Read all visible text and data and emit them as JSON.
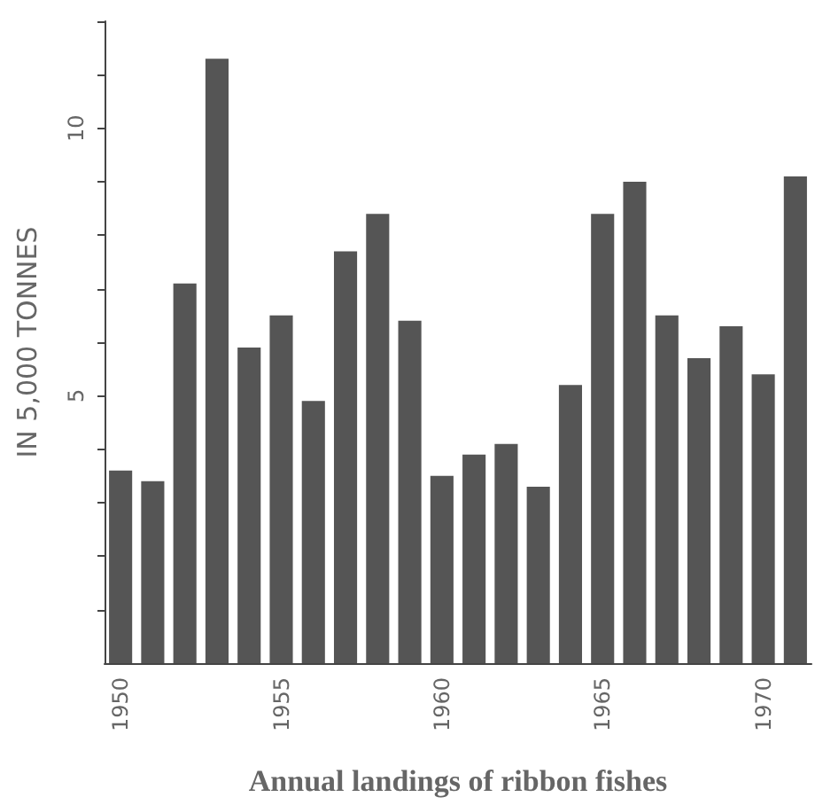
{
  "chart_data": {
    "type": "bar",
    "xlabel": "Annual landings of ribbon fishes",
    "ylabel": "IN 5,000 TONNES",
    "categories": [
      "1950",
      null,
      null,
      null,
      null,
      "1955",
      null,
      null,
      null,
      null,
      "1960",
      null,
      null,
      null,
      null,
      "1965",
      null,
      null,
      null,
      null,
      "1970",
      null
    ],
    "values": [
      3.6,
      3.4,
      7.1,
      11.3,
      5.9,
      6.5,
      4.9,
      7.7,
      8.4,
      6.4,
      3.5,
      3.9,
      4.1,
      3.3,
      5.2,
      8.4,
      9.0,
      6.5,
      5.7,
      6.3,
      5.4,
      9.1
    ],
    "color": "#555555",
    "ylim": [
      0,
      12
    ],
    "yticks": [
      {
        "value": 1,
        "label": null
      },
      {
        "value": 2,
        "label": null
      },
      {
        "value": 3,
        "label": null
      },
      {
        "value": 4,
        "label": null
      },
      5,
      {
        "value": 6,
        "label": null
      },
      {
        "value": 7,
        "label": null
      },
      {
        "value": 8,
        "label": null
      },
      {
        "value": 9,
        "label": null
      },
      10,
      {
        "value": 11,
        "label": null
      },
      {
        "value": 12,
        "label": null
      }
    ],
    "grid": false
  }
}
